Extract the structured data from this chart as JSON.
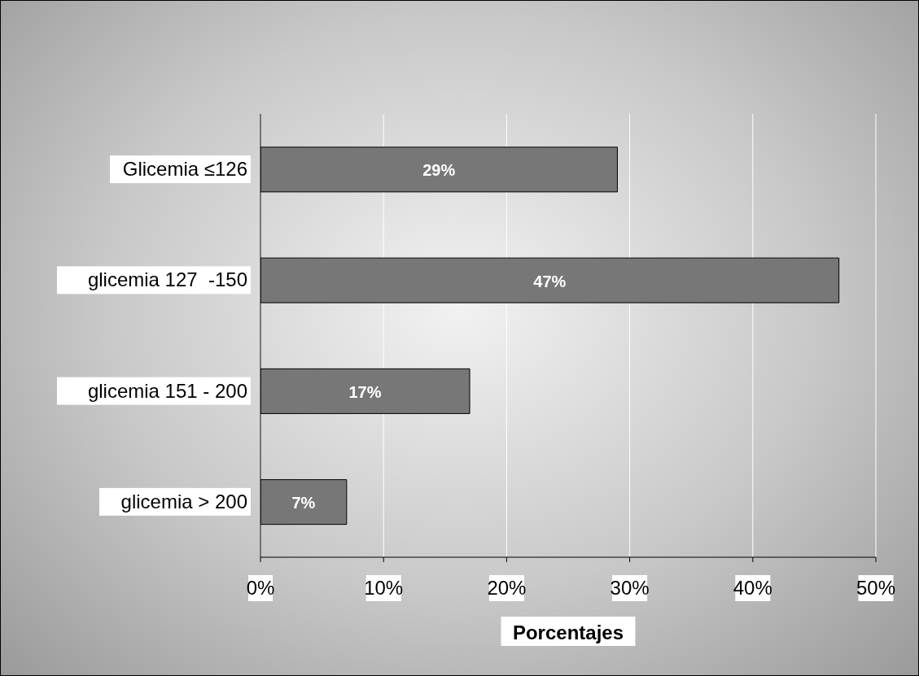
{
  "chart_data": {
    "type": "bar",
    "orientation": "horizontal",
    "xlabel": "Porcentajes",
    "categories": [
      "Glicemia ≤126",
      "glicemia 127  -150",
      "glicemia 151 - 200",
      "glicemia > 200"
    ],
    "values": [
      29,
      47,
      17,
      7
    ],
    "value_labels": [
      "29%",
      "47%",
      "17%",
      "7%"
    ],
    "color": "#777777",
    "xlim": [
      0,
      50
    ],
    "xticks": [
      {
        "value": 0,
        "label": "0%"
      },
      {
        "value": 10,
        "label": "10%"
      },
      {
        "value": 20,
        "label": "20%"
      },
      {
        "value": 30,
        "label": "30%"
      },
      {
        "value": 40,
        "label": "40%"
      },
      {
        "value": 50,
        "label": "50%"
      }
    ],
    "grid": "x"
  }
}
